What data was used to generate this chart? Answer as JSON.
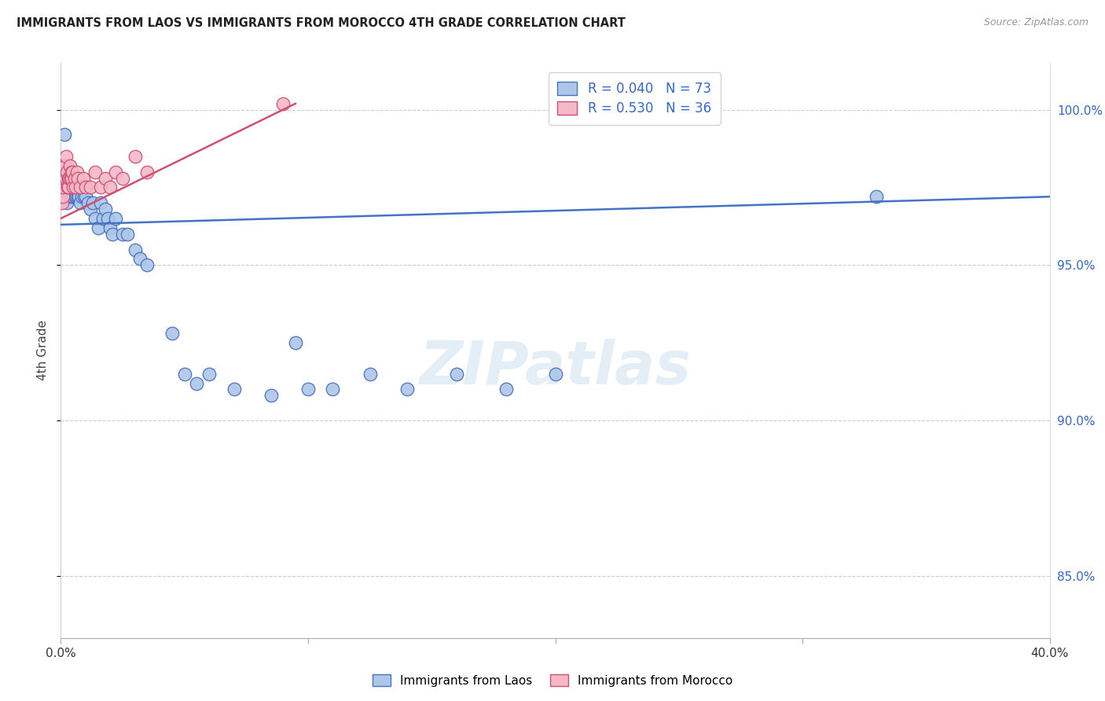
{
  "title": "IMMIGRANTS FROM LAOS VS IMMIGRANTS FROM MOROCCO 4TH GRADE CORRELATION CHART",
  "source": "Source: ZipAtlas.com",
  "ylabel": "4th Grade",
  "xlim": [
    0.0,
    40.0
  ],
  "ylim": [
    83.0,
    101.5
  ],
  "yticks": [
    85.0,
    90.0,
    95.0,
    100.0
  ],
  "ytick_labels": [
    "85.0%",
    "90.0%",
    "95.0%",
    "100.0%"
  ],
  "legend_label_laos": "Immigrants from Laos",
  "legend_label_morocco": "Immigrants from Morocco",
  "legend_r_laos": "R = 0.040   N = 73",
  "legend_r_morocco": "R = 0.530   N = 36",
  "laos_color": "#aec6e8",
  "laos_edge_color": "#4472c4",
  "morocco_color": "#f4b8c8",
  "morocco_edge_color": "#d05070",
  "blue_line_color": "#4472c4",
  "pink_line_color": "#d05070",
  "blue_line": [
    0.0,
    96.3,
    40.0,
    97.2
  ],
  "pink_line": [
    0.0,
    96.5,
    9.5,
    100.2
  ],
  "laos_x": [
    0.05,
    0.08,
    0.1,
    0.12,
    0.15,
    0.15,
    0.18,
    0.2,
    0.22,
    0.25,
    0.25,
    0.28,
    0.3,
    0.3,
    0.32,
    0.35,
    0.35,
    0.38,
    0.4,
    0.42,
    0.45,
    0.45,
    0.48,
    0.5,
    0.5,
    0.52,
    0.55,
    0.58,
    0.6,
    0.62,
    0.65,
    0.68,
    0.7,
    0.72,
    0.75,
    0.8,
    0.85,
    0.9,
    0.95,
    1.0,
    1.0,
    1.1,
    1.2,
    1.3,
    1.4,
    1.5,
    1.6,
    1.7,
    1.8,
    1.9,
    2.0,
    2.1,
    2.2,
    2.5,
    2.7,
    3.0,
    3.2,
    3.5,
    4.5,
    5.0,
    5.5,
    6.0,
    7.0,
    8.5,
    9.5,
    10.0,
    11.0,
    12.5,
    14.0,
    16.0,
    18.0,
    20.0,
    33.0
  ],
  "laos_y": [
    97.8,
    98.0,
    97.5,
    98.2,
    97.8,
    99.2,
    97.5,
    97.8,
    97.5,
    97.0,
    98.0,
    97.8,
    97.5,
    97.2,
    97.5,
    97.8,
    97.5,
    97.5,
    97.8,
    97.5,
    97.2,
    97.5,
    97.5,
    97.8,
    97.2,
    97.5,
    97.5,
    97.2,
    97.5,
    97.2,
    97.5,
    97.2,
    97.5,
    97.2,
    97.5,
    97.0,
    97.2,
    97.5,
    97.2,
    97.5,
    97.2,
    97.0,
    96.8,
    97.0,
    96.5,
    96.2,
    97.0,
    96.5,
    96.8,
    96.5,
    96.2,
    96.0,
    96.5,
    96.0,
    96.0,
    95.5,
    95.2,
    95.0,
    92.8,
    91.5,
    91.2,
    91.5,
    91.0,
    90.8,
    92.5,
    91.0,
    91.0,
    91.5,
    91.0,
    91.5,
    91.0,
    91.5,
    97.2
  ],
  "morocco_x": [
    0.05,
    0.08,
    0.1,
    0.12,
    0.15,
    0.18,
    0.2,
    0.22,
    0.25,
    0.28,
    0.3,
    0.32,
    0.35,
    0.38,
    0.4,
    0.42,
    0.45,
    0.48,
    0.5,
    0.55,
    0.6,
    0.65,
    0.7,
    0.8,
    0.9,
    1.0,
    1.2,
    1.4,
    1.6,
    1.8,
    2.0,
    2.2,
    2.5,
    3.0,
    3.5,
    9.0
  ],
  "morocco_y": [
    97.0,
    97.2,
    97.5,
    97.8,
    98.0,
    98.2,
    97.8,
    98.5,
    98.0,
    97.5,
    97.8,
    97.5,
    97.8,
    98.2,
    97.8,
    98.0,
    97.8,
    98.0,
    97.5,
    97.8,
    97.5,
    98.0,
    97.8,
    97.5,
    97.8,
    97.5,
    97.5,
    98.0,
    97.5,
    97.8,
    97.5,
    98.0,
    97.8,
    98.5,
    98.0,
    100.2
  ]
}
